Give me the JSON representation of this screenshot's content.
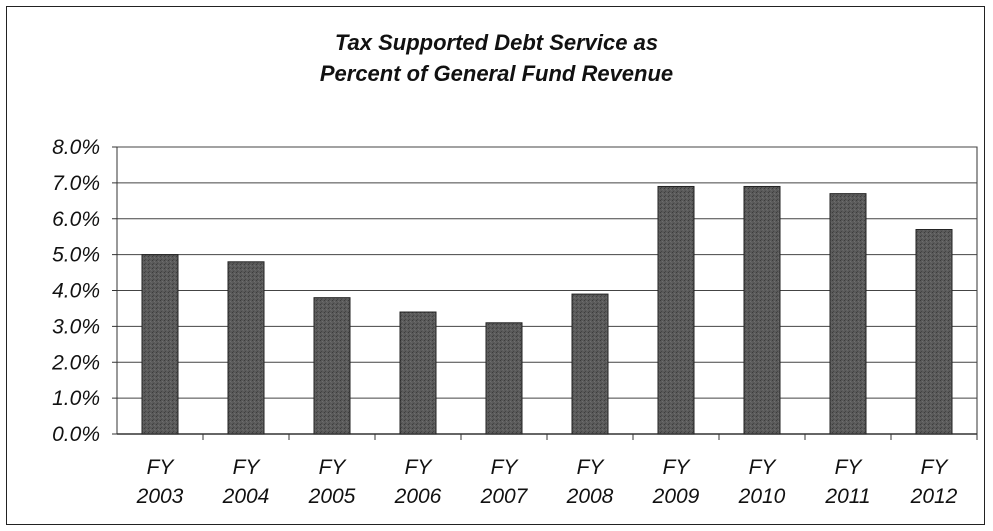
{
  "chart_data": {
    "type": "bar",
    "title_lines": [
      "Tax Supported Debt Service as",
      "Percent of General Fund Revenue"
    ],
    "xlabel": "",
    "ylabel": "",
    "categories": [
      {
        "line1": "FY",
        "line2": "2003"
      },
      {
        "line1": "FY",
        "line2": "2004"
      },
      {
        "line1": "FY",
        "line2": "2005"
      },
      {
        "line1": "FY",
        "line2": "2006"
      },
      {
        "line1": "FY",
        "line2": "2007"
      },
      {
        "line1": "FY",
        "line2": "2008"
      },
      {
        "line1": "FY",
        "line2": "2009"
      },
      {
        "line1": "FY",
        "line2": "2010"
      },
      {
        "line1": "FY",
        "line2": "2011"
      },
      {
        "line1": "FY",
        "line2": "2012"
      }
    ],
    "values": [
      5.0,
      4.8,
      3.8,
      3.4,
      3.1,
      3.9,
      6.9,
      6.9,
      6.7,
      5.7
    ],
    "ylim": [
      0,
      8
    ],
    "yticks": [
      "0.0%",
      "1.0%",
      "2.0%",
      "3.0%",
      "4.0%",
      "5.0%",
      "6.0%",
      "7.0%",
      "8.0%"
    ],
    "grid": true,
    "legend": "none",
    "bar_color": "#555555"
  }
}
